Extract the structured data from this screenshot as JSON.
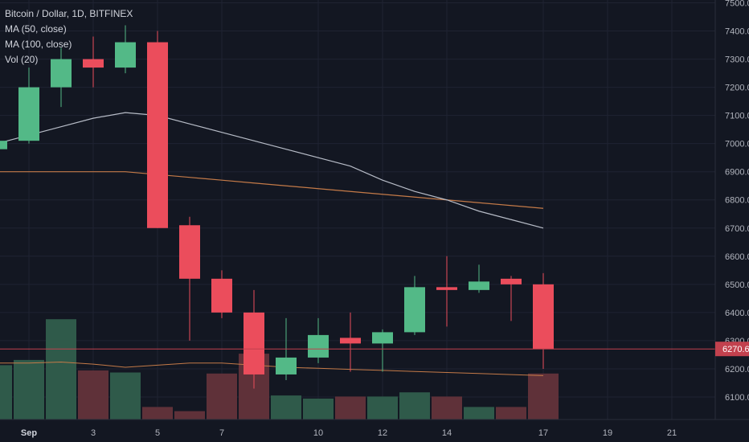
{
  "legend": {
    "symbol": "Bitcoin / Dollar, 1D, BITFINEX",
    "ma50": "MA (50, close)",
    "ma100": "MA (100, close)",
    "vol": "Vol (20)"
  },
  "colors": {
    "background": "#131722",
    "grid": "#1f2332",
    "up": "#53b987",
    "down": "#eb4d5c",
    "up_volume": "#2f5a4a",
    "down_volume": "#5f3139",
    "ma50": "#b7bcc7",
    "ma100": "#c47a48",
    "last_price_line": "#c2414e",
    "last_price_tag": "#c2414e",
    "axis_text": "#b2b5be",
    "border": "#2a2e39"
  },
  "chart_data": {
    "type": "candlestick",
    "title": "Bitcoin / Dollar, 1D, BITFINEX",
    "xlabel": "",
    "ylabel": "",
    "ylim": [
      6020,
      7510
    ],
    "y_ticks": [
      6100,
      6200,
      6300,
      6400,
      6500,
      6600,
      6700,
      6800,
      6900,
      7000,
      7100,
      7200,
      7300,
      7400,
      7500
    ],
    "x_ticks": [
      {
        "label": "Sep",
        "day": 1,
        "bold": true
      },
      {
        "label": "3",
        "day": 3
      },
      {
        "label": "5",
        "day": 5
      },
      {
        "label": "7",
        "day": 7
      },
      {
        "label": "10",
        "day": 10
      },
      {
        "label": "12",
        "day": 12
      },
      {
        "label": "14",
        "day": 14
      },
      {
        "label": "17",
        "day": 17
      },
      {
        "label": "19",
        "day": 19
      },
      {
        "label": "21",
        "day": 21
      }
    ],
    "last_price": {
      "value": 6270.6,
      "label": "6270.6"
    },
    "candles": [
      {
        "date": "2018-08-31",
        "open": 6980,
        "high": 7030,
        "low": 6970,
        "close": 7010
      },
      {
        "date": "2018-09-01",
        "open": 7010,
        "high": 7270,
        "low": 7000,
        "close": 7200
      },
      {
        "date": "2018-09-02",
        "open": 7200,
        "high": 7340,
        "low": 7130,
        "close": 7300
      },
      {
        "date": "2018-09-03",
        "open": 7300,
        "high": 7380,
        "low": 7200,
        "close": 7270
      },
      {
        "date": "2018-09-04",
        "open": 7270,
        "high": 7420,
        "low": 7250,
        "close": 7360
      },
      {
        "date": "2018-09-05",
        "open": 7360,
        "high": 7400,
        "low": 6700,
        "close": 6700
      },
      {
        "date": "2018-09-06",
        "open": 6710,
        "high": 6740,
        "low": 6300,
        "close": 6520
      },
      {
        "date": "2018-09-07",
        "open": 6520,
        "high": 6550,
        "low": 6380,
        "close": 6400
      },
      {
        "date": "2018-09-08",
        "open": 6400,
        "high": 6480,
        "low": 6130,
        "close": 6180
      },
      {
        "date": "2018-09-09",
        "open": 6180,
        "high": 6380,
        "low": 6160,
        "close": 6240
      },
      {
        "date": "2018-09-10",
        "open": 6240,
        "high": 6380,
        "low": 6220,
        "close": 6320
      },
      {
        "date": "2018-09-11",
        "open": 6310,
        "high": 6400,
        "low": 6190,
        "close": 6290
      },
      {
        "date": "2018-09-12",
        "open": 6290,
        "high": 6340,
        "low": 6190,
        "close": 6330
      },
      {
        "date": "2018-09-13",
        "open": 6330,
        "high": 6530,
        "low": 6320,
        "close": 6490
      },
      {
        "date": "2018-09-14",
        "open": 6490,
        "high": 6600,
        "low": 6350,
        "close": 6480
      },
      {
        "date": "2018-09-15",
        "open": 6480,
        "high": 6570,
        "low": 6470,
        "close": 6510
      },
      {
        "date": "2018-09-16",
        "open": 6520,
        "high": 6530,
        "low": 6370,
        "close": 6500
      },
      {
        "date": "2018-09-17",
        "open": 6500,
        "high": 6540,
        "low": 6200,
        "close": 6270.6
      }
    ],
    "volume": {
      "bars": [
        0.52,
        0.57,
        0.96,
        0.47,
        0.45,
        0.12,
        0.08,
        0.44,
        0.63,
        0.23,
        0.2,
        0.22,
        0.22,
        0.26,
        0.22,
        0.12,
        0.12,
        0.44
      ],
      "ma20": [
        0.54,
        0.54,
        0.55,
        0.53,
        0.5,
        0.52,
        0.54,
        0.54,
        0.52,
        0.5,
        0.49,
        0.48,
        0.47,
        0.46,
        0.45,
        0.44,
        0.43,
        0.42
      ]
    },
    "ma50": [
      7000,
      7030,
      7060,
      7090,
      7110,
      7100,
      7070,
      7040,
      7010,
      6980,
      6950,
      6920,
      6870,
      6830,
      6800,
      6760,
      6730,
      6700
    ],
    "ma100": [
      6900,
      6900,
      6900,
      6900,
      6900,
      6890,
      6880,
      6870,
      6860,
      6850,
      6840,
      6830,
      6820,
      6810,
      6800,
      6790,
      6780,
      6770
    ]
  }
}
